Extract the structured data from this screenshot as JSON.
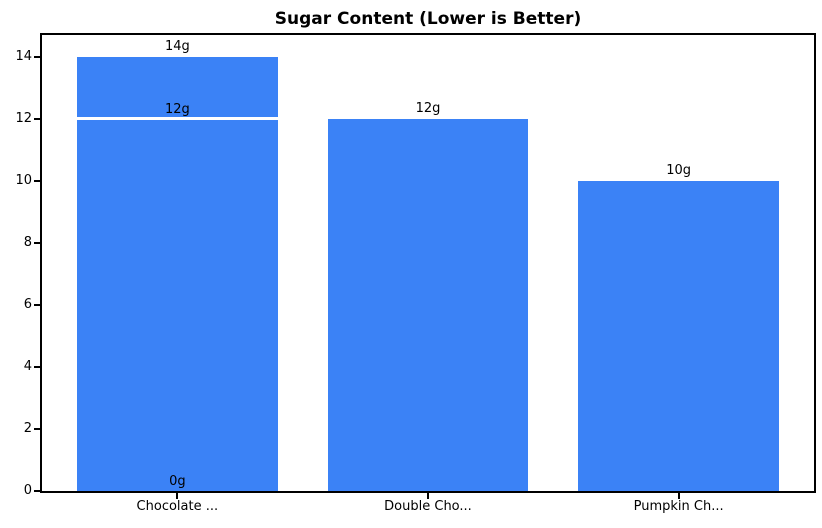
{
  "chart_data": {
    "type": "bar",
    "title": "Sugar Content (Lower is Better)",
    "categories": [
      "Chocolate ...",
      "Double Cho...",
      "Pumpkin Ch..."
    ],
    "values": [
      14,
      12,
      10
    ],
    "value_labels": [
      "14g",
      "12g",
      "10g"
    ],
    "annotations": [
      {
        "category_index": 0,
        "value": 12,
        "label": "12g",
        "white_divider_line": true
      },
      {
        "category_index": 0,
        "value": 0,
        "label": "0g",
        "white_divider_line": false
      }
    ],
    "yticks": [
      0,
      2,
      4,
      6,
      8,
      10,
      12,
      14
    ],
    "ylim": [
      0,
      14.7
    ],
    "xlabel": "",
    "ylabel": "",
    "grid": false,
    "legend": false,
    "bar_color": "#3b82f6",
    "background_color": "#ffffff",
    "axis_color": "#000000",
    "text_color": "#000000"
  }
}
